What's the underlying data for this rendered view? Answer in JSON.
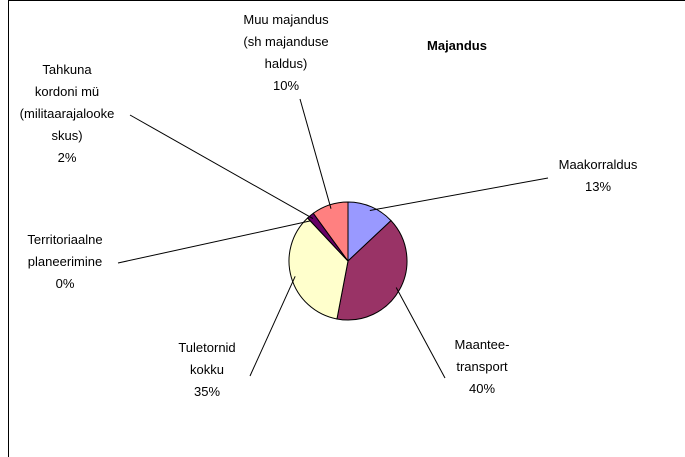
{
  "chart_data": {
    "type": "pie",
    "title": "Majandus",
    "categories": [
      "Maakorraldus",
      "Maantee-\ntransport",
      "Tuletornid\nkokku",
      "Territoriaalne\nplaneerimine",
      "Tahkuna\nkordoni mü\n(militaarajalooke\nskus)",
      "Muu majandus\n(sh majanduse\nhaldus)"
    ],
    "values": [
      13,
      40,
      35,
      0,
      2,
      10
    ],
    "value_labels": [
      "13%",
      "40%",
      "35%",
      "0%",
      "2%",
      "10%"
    ],
    "colors": [
      "#9999ff",
      "#993366",
      "#ffffcc",
      "#ccffff",
      "#660066",
      "#ff8080"
    ]
  }
}
